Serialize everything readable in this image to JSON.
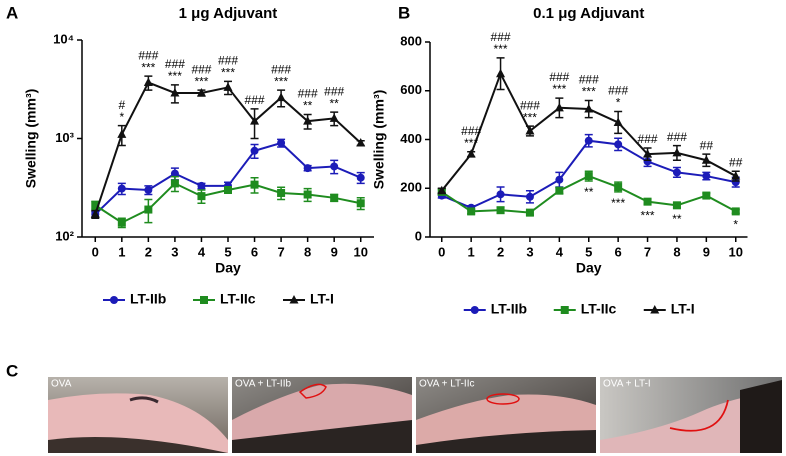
{
  "panel_labels": [
    "A",
    "B",
    "C"
  ],
  "chart_data": [
    {
      "type": "line",
      "title": "1 μg Adjuvant",
      "xlabel": "Day",
      "ylabel": "Swelling (mm³)",
      "log_y": true,
      "x": [
        0,
        1,
        2,
        3,
        4,
        5,
        6,
        7,
        8,
        9,
        10
      ],
      "xlim": [
        -0.5,
        10.5
      ],
      "xticks": [
        0,
        1,
        2,
        3,
        4,
        5,
        6,
        7,
        8,
        9,
        10
      ],
      "ylim": [
        100,
        10000
      ],
      "yticks": [
        {
          "value": 100,
          "label": "10²"
        },
        {
          "value": 1000,
          "label": "10³"
        },
        {
          "value": 10000,
          "label": "10⁴"
        }
      ],
      "legend": "bottom",
      "series": [
        {
          "name": "LT-IIb",
          "color": "#1c1cb8",
          "marker": "circle",
          "values": [
            170,
            310,
            300,
            440,
            330,
            330,
            750,
            900,
            500,
            520,
            400
          ],
          "errors": [
            10,
            40,
            30,
            60,
            20,
            30,
            120,
            80,
            30,
            80,
            50
          ]
        },
        {
          "name": "LT-IIc",
          "color": "#1f8c1f",
          "marker": "square",
          "values": [
            210,
            140,
            190,
            350,
            260,
            300,
            340,
            280,
            270,
            250,
            220
          ],
          "errors": [
            20,
            15,
            50,
            60,
            40,
            20,
            60,
            40,
            40,
            20,
            30
          ]
        },
        {
          "name": "LT-I",
          "color": "#111111",
          "marker": "triangle",
          "values": [
            170,
            1100,
            3700,
            2900,
            2900,
            3300,
            1500,
            2600,
            1500,
            1600,
            900
          ],
          "errors": [
            15,
            250,
            600,
            600,
            200,
            500,
            500,
            500,
            250,
            250,
            50
          ]
        }
      ],
      "annotations": [
        {
          "x": 1,
          "lines": [
            "#",
            "*"
          ]
        },
        {
          "x": 2,
          "lines": [
            "###",
            "***"
          ]
        },
        {
          "x": 3,
          "lines": [
            "###",
            "***"
          ]
        },
        {
          "x": 4,
          "lines": [
            "###",
            "***"
          ]
        },
        {
          "x": 5,
          "lines": [
            "###",
            "***"
          ]
        },
        {
          "x": 6,
          "lines": [
            "###"
          ]
        },
        {
          "x": 7,
          "lines": [
            "###",
            "***"
          ]
        },
        {
          "x": 8,
          "lines": [
            "###",
            "**"
          ]
        },
        {
          "x": 9,
          "lines": [
            "###",
            "**"
          ]
        }
      ]
    },
    {
      "type": "line",
      "title": "0.1 μg Adjuvant",
      "xlabel": "Day",
      "ylabel": "Swelling (mm³)",
      "log_y": false,
      "x": [
        0,
        1,
        2,
        3,
        4,
        5,
        6,
        7,
        8,
        9,
        10
      ],
      "xlim": [
        -0.4,
        10.4
      ],
      "xticks": [
        0,
        1,
        2,
        3,
        4,
        5,
        6,
        7,
        8,
        9,
        10
      ],
      "ylim": [
        0,
        800
      ],
      "yticks": [
        0,
        200,
        400,
        600,
        800
      ],
      "legend": "bottom",
      "series": [
        {
          "name": "LT-IIb",
          "color": "#1c1cb8",
          "marker": "circle",
          "values": [
            170,
            120,
            175,
            165,
            235,
            395,
            380,
            310,
            265,
            250,
            225
          ],
          "errors": [
            10,
            8,
            30,
            25,
            30,
            25,
            25,
            20,
            20,
            15,
            20
          ]
        },
        {
          "name": "LT-IIc",
          "color": "#1f8c1f",
          "marker": "square",
          "values": [
            185,
            105,
            110,
            100,
            190,
            250,
            205,
            145,
            130,
            170,
            105
          ],
          "errors": [
            10,
            10,
            12,
            10,
            12,
            20,
            20,
            10,
            10,
            10,
            8
          ]
        },
        {
          "name": "LT-I",
          "color": "#111111",
          "marker": "triangle",
          "values": [
            190,
            340,
            670,
            435,
            530,
            525,
            470,
            340,
            345,
            315,
            250
          ],
          "errors": [
            10,
            10,
            65,
            20,
            40,
            35,
            45,
            25,
            30,
            25,
            20
          ]
        }
      ],
      "annotations": [
        {
          "x": 1,
          "lines": [
            "###",
            "***"
          ]
        },
        {
          "x": 2,
          "lines": [
            "###",
            "***"
          ]
        },
        {
          "x": 3,
          "lines": [
            "###",
            "***"
          ]
        },
        {
          "x": 4,
          "lines": [
            "###",
            "***"
          ]
        },
        {
          "x": 5,
          "lines": [
            "###",
            "***"
          ]
        },
        {
          "x": 6,
          "lines": [
            "###",
            "*"
          ]
        },
        {
          "x": 7,
          "lines": [
            "###"
          ]
        },
        {
          "x": 8,
          "lines": [
            "###"
          ]
        },
        {
          "x": 9,
          "lines": [
            "##"
          ]
        },
        {
          "x": 10,
          "lines": [
            "##"
          ]
        }
      ],
      "annotations_below": [
        {
          "x": 5,
          "lines": [
            "**"
          ]
        },
        {
          "x": 6,
          "lines": [
            "***"
          ]
        },
        {
          "x": 7,
          "lines": [
            "***"
          ]
        },
        {
          "x": 8,
          "lines": [
            "**"
          ]
        },
        {
          "x": 10,
          "lines": [
            "*"
          ]
        }
      ]
    }
  ],
  "photos": [
    {
      "label": "OVA"
    },
    {
      "label": "OVA + LT-IIb"
    },
    {
      "label": "OVA + LT-IIc"
    },
    {
      "label": "OVA + LT-I"
    }
  ]
}
